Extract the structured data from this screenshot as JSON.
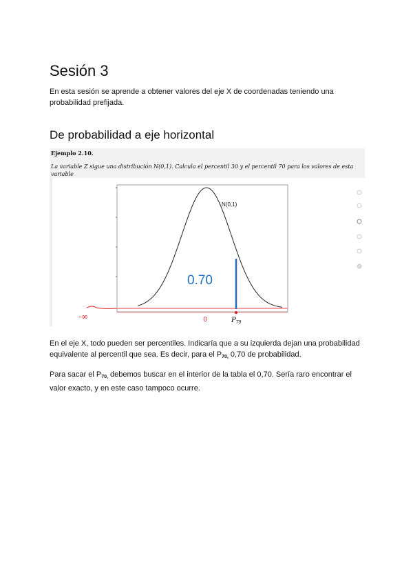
{
  "title": "Sesión 3",
  "intro": "En esta sesión se aprende a obtener valores del eje X de coordenadas teniendo una probabilidad prefijada.",
  "section_title": "De probabilidad a eje horizontal",
  "figure": {
    "example_label": "Ejemplo 2.10.",
    "question": "La variable Z sigue una distribución N(0,1). Calcula el percentil 30 y el percentil 70 para los valores de esta variable",
    "curve_label": "N(0,1)",
    "area_label": "0.70",
    "x_label_zero": "0",
    "x_label_p": "P",
    "x_label_p_sub": "70",
    "handwritten": "-∞",
    "colors": {
      "curve": "#222222",
      "area_line": "#2b6cb0",
      "area_text": "#1f6fc0",
      "annotation": "#e02020",
      "baseline": "#f5a0a0"
    }
  },
  "para1": {
    "a": "En el eje X, todo pueden ser percentiles. Indicaría que a su izquierda dejan una probabilidad equivalente al percentil que sea. Es decir, para el P",
    "sub": "70,",
    "b": " 0,70 de probabilidad."
  },
  "para2": {
    "a": "Para sacar el P",
    "sub": "70,",
    "b": " debemos buscar en el interior de la tabla el 0,70. Sería raro encontrar el valor exacto, y en este caso tampoco ocurre."
  }
}
